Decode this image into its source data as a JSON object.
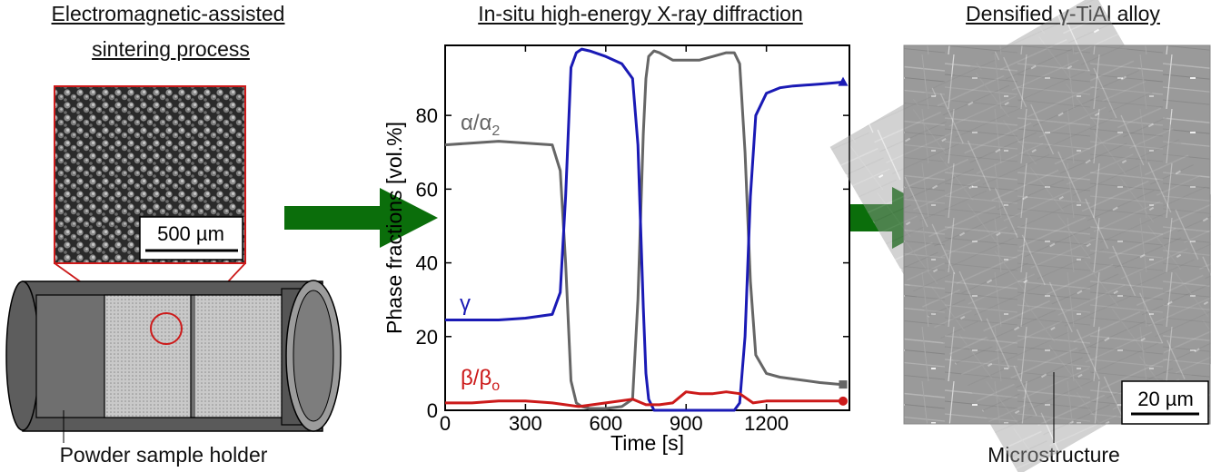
{
  "panels": {
    "left": {
      "title_line1": "Electromagnetic-assisted",
      "title_line2": "sintering process",
      "scale_bar": "500 µm",
      "caption": "Powder sample holder"
    },
    "middle": {
      "title": "In-situ high-energy X-ray diffraction"
    },
    "right": {
      "title": "Densified γ-TiAl alloy",
      "scale_bar": "20 µm",
      "caption": "Microstructure"
    }
  },
  "colors": {
    "arrow": "#0b6e0b",
    "alpha": "#666666",
    "gamma": "#1a1ab5",
    "beta": "#cc1a1a",
    "callout": "#cc1a1a"
  },
  "chart_data": {
    "type": "line",
    "xlabel": "Time [s]",
    "ylabel": "Phase fractions [vol.%]",
    "xlim": [
      0,
      1510
    ],
    "ylim": [
      0,
      99
    ],
    "xticks": [
      0,
      300,
      600,
      900,
      1200
    ],
    "yticks": [
      0,
      20,
      40,
      60,
      80
    ],
    "series": [
      {
        "name": "α/α",
        "name_sub": "2",
        "color": "#666666",
        "marker": "square",
        "x": [
          0,
          100,
          200,
          300,
          400,
          430,
          450,
          470,
          490,
          510,
          540,
          600,
          660,
          700,
          720,
          740,
          750,
          760,
          780,
          800,
          850,
          900,
          950,
          1000,
          1050,
          1080,
          1100,
          1120,
          1140,
          1160,
          1200,
          1250,
          1300,
          1400,
          1480
        ],
        "values": [
          72,
          72.5,
          73,
          72.5,
          72,
          65,
          40,
          8,
          2,
          1,
          0.5,
          0.5,
          1,
          3,
          30,
          75,
          90,
          96,
          97.5,
          97,
          95,
          95,
          95,
          96,
          97,
          97,
          94,
          70,
          35,
          15,
          10,
          9,
          8.5,
          7.5,
          7
        ]
      },
      {
        "name": "γ",
        "name_sub": "",
        "color": "#1a1ab5",
        "marker": "triangle",
        "x": [
          0,
          100,
          200,
          300,
          400,
          430,
          450,
          470,
          490,
          510,
          540,
          600,
          660,
          700,
          720,
          740,
          750,
          760,
          780,
          800,
          850,
          900,
          950,
          1000,
          1050,
          1080,
          1100,
          1120,
          1140,
          1160,
          1200,
          1250,
          1300,
          1400,
          1480
        ],
        "values": [
          24.5,
          24.5,
          24.5,
          25,
          26,
          32,
          58,
          93,
          97,
          98,
          97.5,
          96,
          94,
          90,
          72,
          28,
          10,
          3,
          0,
          0,
          0,
          0,
          0,
          0,
          0,
          0,
          2,
          20,
          58,
          80,
          86,
          87.5,
          88,
          88.5,
          89
        ]
      },
      {
        "name": "β/β",
        "name_sub": "o",
        "color": "#cc1a1a",
        "marker": "circle",
        "x": [
          0,
          100,
          200,
          300,
          400,
          500,
          600,
          700,
          750,
          800,
          850,
          900,
          950,
          1000,
          1050,
          1100,
          1150,
          1200,
          1300,
          1400,
          1480
        ],
        "values": [
          2,
          2,
          2.5,
          2.5,
          2,
          1,
          2,
          3,
          1.5,
          1.5,
          2,
          5,
          4.5,
          4.5,
          5,
          4.5,
          2,
          2.5,
          2.5,
          2.5,
          2.5
        ]
      }
    ]
  }
}
